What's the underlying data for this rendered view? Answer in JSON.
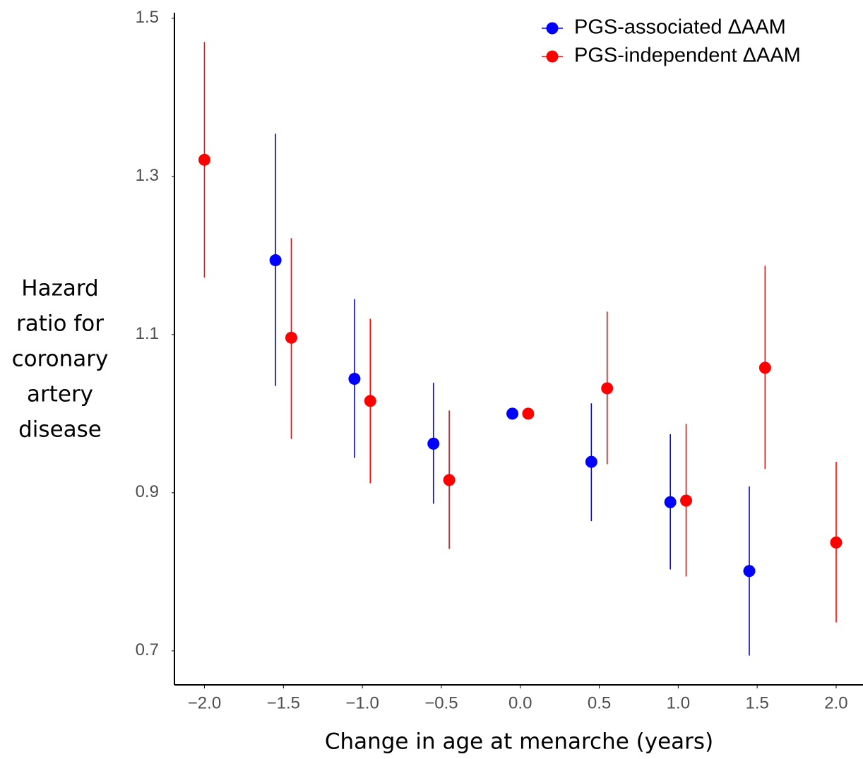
{
  "chart_data": {
    "type": "errorbar",
    "xlabel": "Change in age at menarche (years)",
    "ylabel": [
      "Hazard",
      "ratio for",
      "coronary",
      "artery",
      "disease"
    ],
    "xlim": [
      -2.19,
      2.17
    ],
    "ylim": [
      0.657,
      1.507
    ],
    "xticks": [
      {
        "value": -2,
        "label": "−2.0"
      },
      {
        "value": -1.5,
        "label": "−1.5"
      },
      {
        "value": -1,
        "label": "−1.0"
      },
      {
        "value": -0.5,
        "label": "−0.5"
      },
      {
        "value": 0,
        "label": "0.0"
      },
      {
        "value": 0.5,
        "label": "0.5"
      },
      {
        "value": 1,
        "label": "1.0"
      },
      {
        "value": 1.5,
        "label": "1.5"
      },
      {
        "value": 2,
        "label": "2.0"
      }
    ],
    "yticks": [
      0.7,
      0.9,
      1.1,
      1.3,
      1.5
    ],
    "grid": false,
    "legend": "top-right",
    "series": [
      {
        "name": "PGS-associated ΔAAM",
        "color": "#0000ff",
        "x": [
          -1.55,
          -1.05,
          -0.55,
          -0.05,
          0.45,
          0.95,
          1.45
        ],
        "values": [
          1.194,
          1.044,
          0.962,
          1.0,
          0.939,
          0.888,
          0.801
        ],
        "lower": [
          1.035,
          0.944,
          0.886,
          1.0,
          0.864,
          0.803,
          0.694
        ],
        "upper": [
          1.354,
          1.145,
          1.039,
          1.0,
          1.013,
          0.974,
          0.908
        ]
      },
      {
        "name": "PGS-independent ΔAAM",
        "color": "#ff0000",
        "x": [
          -2.0,
          -1.45,
          -0.95,
          -0.45,
          0.05,
          0.55,
          1.05,
          1.55,
          2.0
        ],
        "values": [
          1.321,
          1.096,
          1.016,
          0.916,
          1.0,
          1.032,
          0.89,
          1.058,
          0.837
        ],
        "lower": [
          1.172,
          0.968,
          0.912,
          0.829,
          1.0,
          0.936,
          0.794,
          0.93,
          0.736
        ],
        "upper": [
          1.47,
          1.222,
          1.12,
          1.004,
          1.0,
          1.129,
          0.987,
          1.187,
          0.939
        ]
      }
    ]
  }
}
